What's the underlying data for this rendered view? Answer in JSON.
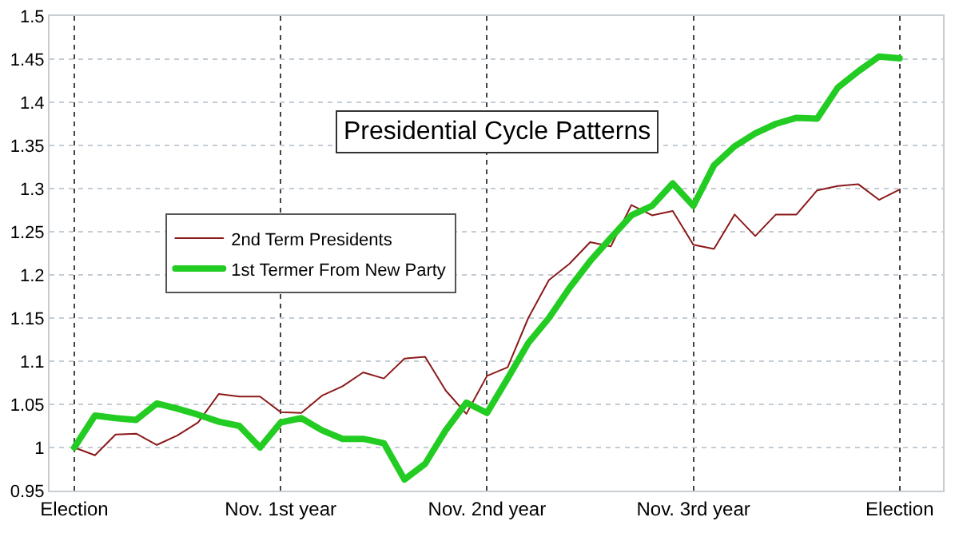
{
  "chart_data": {
    "type": "line",
    "title": "Presidential Cycle Patterns",
    "categories": [
      "Election",
      null,
      null,
      null,
      null,
      null,
      null,
      null,
      null,
      null,
      "Nov. 1st year",
      null,
      null,
      null,
      null,
      null,
      null,
      null,
      null,
      null,
      "Nov. 2nd year",
      null,
      null,
      null,
      null,
      null,
      null,
      null,
      null,
      null,
      "Nov. 3rd year",
      null,
      null,
      null,
      null,
      null,
      null,
      null,
      null,
      null,
      "Election"
    ],
    "ylim": [
      0.95,
      1.5
    ],
    "yticks": [
      0.95,
      1,
      1.05,
      1.1,
      1.15,
      1.2,
      1.25,
      1.3,
      1.35,
      1.4,
      1.45,
      1.5
    ],
    "grid": true,
    "legend": "center",
    "marker": "none",
    "series": [
      {
        "name": "2nd Term Presidents",
        "color": "#8b1a1a",
        "values": [
          1.0,
          0.991,
          1.015,
          1.016,
          1.003,
          1.014,
          1.029,
          1.062,
          1.059,
          1.059,
          1.041,
          1.04,
          1.06,
          1.071,
          1.087,
          1.08,
          1.103,
          1.105,
          1.066,
          1.039,
          1.083,
          1.093,
          1.15,
          1.194,
          1.213,
          1.238,
          1.233,
          1.281,
          1.269,
          1.274,
          1.235,
          1.23,
          1.27,
          1.245,
          1.27,
          1.27,
          1.298,
          1.303,
          1.305,
          1.287,
          1.299
        ]
      },
      {
        "name": "1st Termer From New Party",
        "color": "#22cc22",
        "values": [
          1.0,
          1.037,
          1.034,
          1.032,
          1.051,
          1.045,
          1.038,
          1.03,
          1.025,
          1.0,
          1.029,
          1.034,
          1.02,
          1.01,
          1.01,
          1.005,
          0.963,
          0.981,
          1.02,
          1.052,
          1.04,
          1.08,
          1.121,
          1.15,
          1.185,
          1.216,
          1.243,
          1.269,
          1.28,
          1.306,
          1.28,
          1.327,
          1.349,
          1.364,
          1.375,
          1.382,
          1.381,
          1.417,
          1.436,
          1.453,
          1.451
        ]
      }
    ]
  }
}
